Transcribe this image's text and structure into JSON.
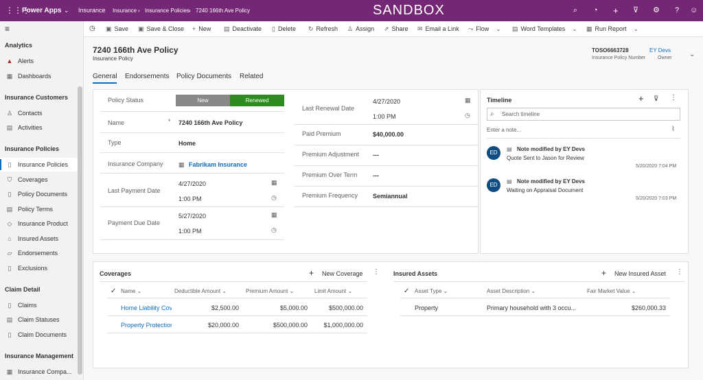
{
  "topbar": {
    "app_name": "Power Apps",
    "app_area": "Insurance",
    "breadcrumb": [
      "Insurance",
      "Insurance Policies",
      "7240 166th Ave Policy"
    ],
    "environment": "SANDBOX"
  },
  "commands": [
    {
      "label": "Save",
      "icon": "save-icon"
    },
    {
      "label": "Save & Close",
      "icon": "save-close-icon"
    },
    {
      "label": "New",
      "icon": "plus-icon"
    },
    {
      "label": "Deactivate",
      "icon": "deactivate-icon"
    },
    {
      "label": "Delete",
      "icon": "trash-icon"
    },
    {
      "label": "Refresh",
      "icon": "refresh-icon"
    },
    {
      "label": "Assign",
      "icon": "assign-icon"
    },
    {
      "label": "Share",
      "icon": "share-icon"
    },
    {
      "label": "Email a Link",
      "icon": "mail-icon"
    },
    {
      "label": "Flow",
      "icon": "flow-icon"
    },
    {
      "label": "Word Templates",
      "icon": "word-icon"
    },
    {
      "label": "Run Report",
      "icon": "report-icon"
    }
  ],
  "sidebar": {
    "sections": [
      {
        "title": "Analytics",
        "items": [
          "Alerts",
          "Dashboards"
        ]
      },
      {
        "title": "Insurance Customers",
        "items": [
          "Contacts",
          "Activities"
        ]
      },
      {
        "title": "Insurance Policies",
        "items": [
          "Insurance Policies",
          "Coverages",
          "Policy Documents",
          "Policy Terms",
          "Insurance Product",
          "Insured Assets",
          "Endorsements",
          "Exclusions"
        ]
      },
      {
        "title": "Claim Detail",
        "items": [
          "Claims",
          "Claim Statuses",
          "Claim Documents"
        ]
      },
      {
        "title": "Insurance Management",
        "items": [
          "Insurance Compa..."
        ]
      }
    ]
  },
  "record": {
    "title": "7240 166th Ave Policy",
    "entity": "Insurance Policy",
    "policy_number": "TOSO6663728",
    "policy_number_label": "Insurance Policy Number",
    "owner": "EY Devs",
    "owner_label": "Owner"
  },
  "tabs": [
    "General",
    "Endorsements",
    "Policy Documents",
    "Related"
  ],
  "form": {
    "policy_status_label": "Policy Status",
    "status_new": "New",
    "status_renewed": "Renewed",
    "name_label": "Name",
    "name_required": "*",
    "name_value": "7240 166th Ave Policy",
    "type_label": "Type",
    "type_value": "Home",
    "company_label": "Insurance Company",
    "company_value": "Fabrikam Insurance",
    "last_payment_label": "Last Payment Date",
    "last_payment_date": "4/27/2020",
    "last_payment_time": "1:00 PM",
    "payment_due_label": "Payment Due Date",
    "payment_due_date": "5/27/2020",
    "payment_due_time": "1:00 PM",
    "last_renewal_label": "Last Renewal Date",
    "last_renewal_date": "4/27/2020",
    "last_renewal_time": "1:00 PM",
    "paid_premium_label": "Paid Premium",
    "paid_premium_value": "$40,000.00",
    "premium_adjustment_label": "Premium Adjustment",
    "premium_adjustment_value": "---",
    "premium_over_term_label": "Premium Over Term",
    "premium_over_term_value": "---",
    "premium_frequency_label": "Premium Frequency",
    "premium_frequency_value": "Semiannual"
  },
  "timeline": {
    "title": "Timeline",
    "search_placeholder": "Search timeline",
    "note_placeholder": "Enter a note...",
    "entries": [
      {
        "initials": "ED",
        "title": "Note modified by EY Devs",
        "body": "Quote Sent to Jason for Review",
        "time": "5/20/2020 7:04 PM"
      },
      {
        "initials": "ED",
        "title": "Note modified by EY Devs",
        "body": "Waiting on Appraisal Document",
        "time": "5/20/2020 7:03 PM"
      }
    ]
  },
  "coverages": {
    "title": "Coverages",
    "new_label": "New Coverage",
    "columns": [
      "Name",
      "Deductible Amount",
      "Premium Amount",
      "Limit Amount"
    ],
    "rows": [
      [
        "Home Liability Cov",
        "$2,500.00",
        "$5,000.00",
        "$500,000.00"
      ],
      [
        "Property Protection",
        "$20,000.00",
        "$500,000.00",
        "$1,000,000.00"
      ]
    ]
  },
  "insured_assets": {
    "title": "Insured Assets",
    "new_label": "New Insured Asset",
    "columns": [
      "Asset Type",
      "Asset Description",
      "Fair Market Value"
    ],
    "rows": [
      [
        "Property",
        "Primary household with 3 occu...",
        "$260,000.33"
      ]
    ]
  },
  "colors": {
    "brand": "#742774",
    "renewed": "#2e8b1f",
    "new_status": "#8a8886",
    "link": "#0f6cbd"
  }
}
